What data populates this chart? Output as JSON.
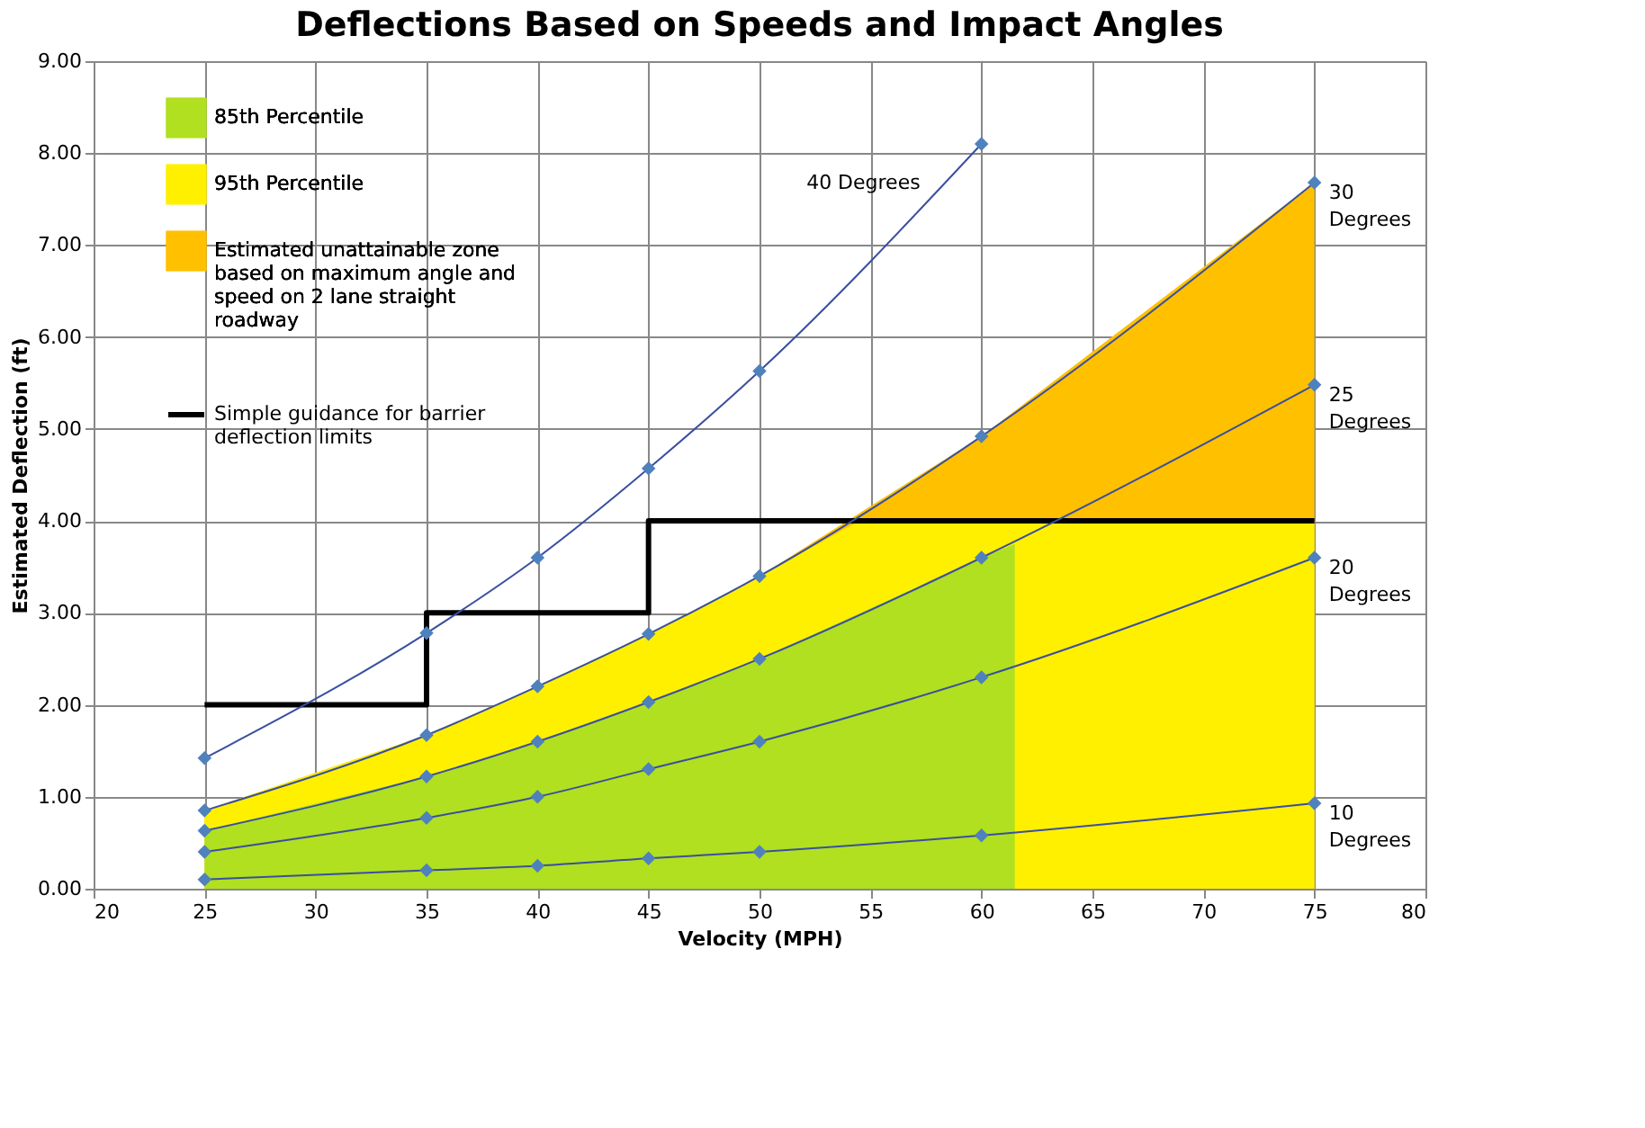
{
  "chart_data": {
    "type": "line",
    "title": "Deflections Based on Speeds and Impact Angles",
    "xlabel": "Velocity (MPH)",
    "ylabel": "Estimated Deflection (ft)",
    "xlim": [
      20,
      80
    ],
    "xticks": [
      20,
      25,
      30,
      35,
      40,
      45,
      50,
      55,
      60,
      65,
      70,
      75,
      80
    ],
    "ylim": [
      0,
      9
    ],
    "yticks": [
      {
        "value": 0,
        "label": "0.00"
      },
      {
        "value": 1,
        "label": "1.00"
      },
      {
        "value": 2,
        "label": "2.00"
      },
      {
        "value": 3,
        "label": "3.00"
      },
      {
        "value": 4,
        "label": "4.00"
      },
      {
        "value": 5,
        "label": "5.00"
      },
      {
        "value": 6,
        "label": "6.00"
      },
      {
        "value": 7,
        "label": "7.00"
      },
      {
        "value": 8,
        "label": "8.00"
      },
      {
        "value": 9,
        "label": "9.00"
      }
    ],
    "grid": true,
    "legend": "top left",
    "line_style": "solid",
    "series": [
      {
        "name": "85th Percentile",
        "type": "area",
        "color": "#b0e020",
        "x": [
          25,
          35,
          40,
          45,
          50,
          60,
          61.5
        ],
        "values": [
          0.63,
          1.22,
          1.6,
          2.03,
          2.5,
          3.6,
          3.75
        ]
      },
      {
        "name": "95th Percentile",
        "type": "area",
        "color": "#fff000",
        "x": [
          25,
          35,
          40,
          45,
          50,
          54.5,
          75
        ],
        "values": [
          0.85,
          1.67,
          2.2,
          2.77,
          3.4,
          4.0,
          4.0
        ]
      },
      {
        "name": "Estimated unattainable zone based on maximum angle and speed on 2 lane straight roadway",
        "type": "area",
        "color": "#ffc000",
        "x": [
          25,
          35,
          40,
          45,
          50,
          60,
          75
        ],
        "values": [
          0.85,
          1.67,
          2.2,
          2.77,
          3.4,
          4.92,
          7.68
        ]
      },
      {
        "name": "Simple guidance for barrier deflection limits",
        "type": "step",
        "color": "#000000",
        "x": [
          25,
          35,
          45,
          75
        ],
        "values": [
          2,
          3,
          4,
          4
        ]
      },
      {
        "name": "40 Degrees",
        "type": "line",
        "marker": "diamond",
        "color": "#4f81bd",
        "x": [
          25,
          35,
          40,
          45,
          50,
          60
        ],
        "values": [
          1.42,
          2.78,
          3.6,
          4.57,
          5.63,
          8.1
        ]
      },
      {
        "name": "30 Degrees",
        "type": "line",
        "marker": "diamond",
        "color": "#4f81bd",
        "x": [
          25,
          35,
          40,
          45,
          50,
          60,
          75
        ],
        "values": [
          0.85,
          1.67,
          2.2,
          2.77,
          3.4,
          4.92,
          7.68
        ]
      },
      {
        "name": "25 Degrees",
        "type": "line",
        "marker": "diamond",
        "color": "#4f81bd",
        "x": [
          25,
          35,
          40,
          45,
          50,
          60,
          75
        ],
        "values": [
          0.63,
          1.22,
          1.6,
          2.03,
          2.5,
          3.6,
          5.48
        ]
      },
      {
        "name": "20 Degrees",
        "type": "line",
        "marker": "diamond",
        "color": "#4f81bd",
        "x": [
          25,
          35,
          40,
          45,
          50,
          60,
          75
        ],
        "values": [
          0.4,
          0.77,
          1.0,
          1.3,
          1.6,
          2.3,
          3.6
        ]
      },
      {
        "name": "10 Degrees",
        "type": "line",
        "marker": "diamond",
        "color": "#4f81bd",
        "x": [
          25,
          35,
          40,
          45,
          50,
          60,
          75
        ],
        "values": [
          0.1,
          0.2,
          0.25,
          0.33,
          0.4,
          0.58,
          0.93
        ]
      }
    ]
  }
}
